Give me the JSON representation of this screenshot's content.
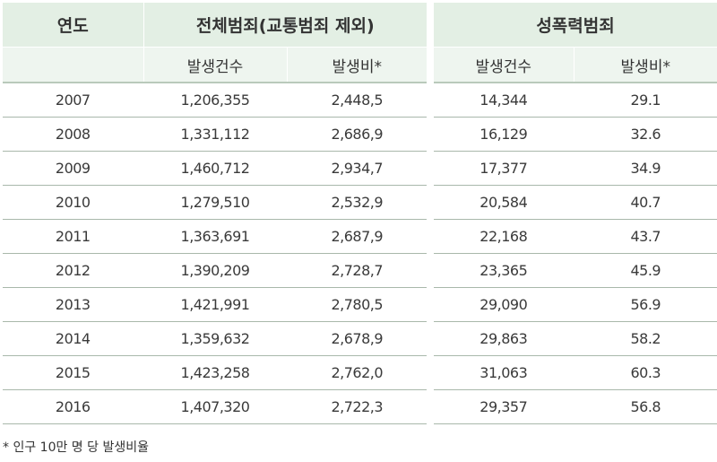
{
  "table": {
    "header_year": "연도",
    "group_total": "전체범죄(교통범죄 제외)",
    "group_sexual": "성폭력범죄",
    "sub_count": "발생건수",
    "sub_rate": "발생비*",
    "rows": [
      {
        "year": "2007",
        "total_count": "1,206,355",
        "total_rate": "2,448,5",
        "sex_count": "14,344",
        "sex_rate": "29.1"
      },
      {
        "year": "2008",
        "total_count": "1,331,112",
        "total_rate": "2,686,9",
        "sex_count": "16,129",
        "sex_rate": "32.6"
      },
      {
        "year": "2009",
        "total_count": "1,460,712",
        "total_rate": "2,934,7",
        "sex_count": "17,377",
        "sex_rate": "34.9"
      },
      {
        "year": "2010",
        "total_count": "1,279,510",
        "total_rate": "2,532,9",
        "sex_count": "20,584",
        "sex_rate": "40.7"
      },
      {
        "year": "2011",
        "total_count": "1,363,691",
        "total_rate": "2,687,9",
        "sex_count": "22,168",
        "sex_rate": "43.7"
      },
      {
        "year": "2012",
        "total_count": "1,390,209",
        "total_rate": "2,728,7",
        "sex_count": "23,365",
        "sex_rate": "45.9"
      },
      {
        "year": "2013",
        "total_count": "1,421,991",
        "total_rate": "2,780,5",
        "sex_count": "29,090",
        "sex_rate": "56.9"
      },
      {
        "year": "2014",
        "total_count": "1,359,632",
        "total_rate": "2,678,9",
        "sex_count": "29,863",
        "sex_rate": "58.2"
      },
      {
        "year": "2015",
        "total_count": "1,423,258",
        "total_rate": "2,762,0",
        "sex_count": "31,063",
        "sex_rate": "60.3"
      },
      {
        "year": "2016",
        "total_count": "1,407,320",
        "total_rate": "2,722,3",
        "sex_count": "29,357",
        "sex_rate": "56.8"
      }
    ]
  },
  "footnote": "* 인구 10만 명 당 발생비율",
  "colors": {
    "header_bg": "#e3efe4",
    "subheader_bg": "#eef5ef",
    "row_line": "#a9b8ab"
  }
}
